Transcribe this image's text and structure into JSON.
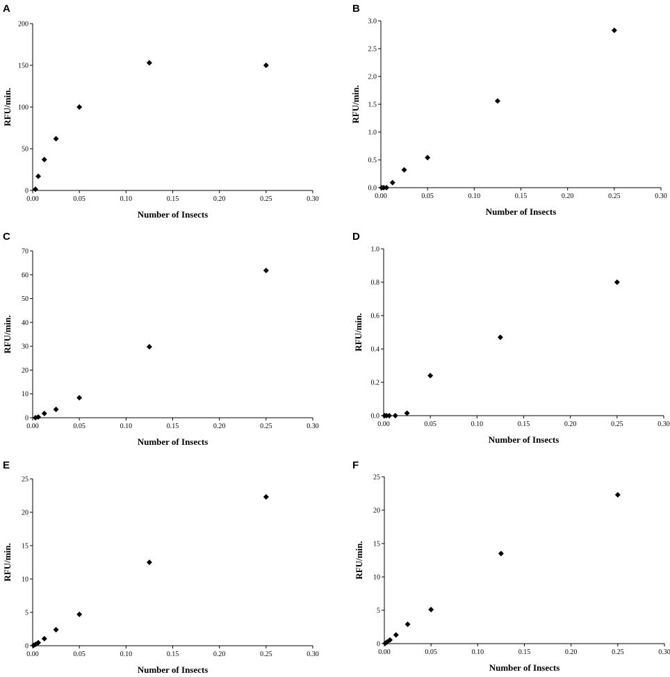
{
  "chart_data": [
    {
      "panel": "A",
      "type": "scatter",
      "xlabel": "Number of Insects",
      "ylabel": "RFU/min.",
      "xlim": [
        0,
        0.3
      ],
      "ylim": [
        0,
        200
      ],
      "xticks": [
        "0.00",
        "0.05",
        "0.10",
        "0.15",
        "0.20",
        "0.25",
        "0.30"
      ],
      "yticks": [
        "0",
        "50",
        "100",
        "150",
        "200"
      ],
      "x": [
        0.003,
        0.006,
        0.0125,
        0.025,
        0.05,
        0.125,
        0.25
      ],
      "y": [
        1.5,
        17,
        37,
        62,
        100,
        153,
        150
      ]
    },
    {
      "panel": "B",
      "type": "scatter",
      "xlabel": "Number of Insects",
      "ylabel": "RFU/min.",
      "xlim": [
        0,
        0.3
      ],
      "ylim": [
        0,
        3
      ],
      "xticks": [
        "0.00",
        "0.05",
        "0.10",
        "0.15",
        "0.20",
        "0.25",
        "0.30"
      ],
      "yticks": [
        "0.0",
        "0.5",
        "1.0",
        "1.5",
        "2.0",
        "2.5",
        "3.0"
      ],
      "x": [
        0.001,
        0.003,
        0.006,
        0.0125,
        0.025,
        0.05,
        0.125,
        0.25
      ],
      "y": [
        0,
        0,
        0,
        0.09,
        0.32,
        0.54,
        1.56,
        2.83
      ]
    },
    {
      "panel": "C",
      "type": "scatter",
      "xlabel": "Number of Insects",
      "ylabel": "RFU/min.",
      "xlim": [
        0,
        0.3
      ],
      "ylim": [
        0,
        70
      ],
      "xticks": [
        "0.00",
        "0.05",
        "0.10",
        "0.15",
        "0.20",
        "0.25",
        "0.30"
      ],
      "yticks": [
        "0",
        "10",
        "20",
        "30",
        "40",
        "50",
        "60",
        "70"
      ],
      "x": [
        0.003,
        0.006,
        0.0125,
        0.025,
        0.05,
        0.125,
        0.25
      ],
      "y": [
        0,
        0.3,
        1.8,
        3.5,
        8.4,
        29.8,
        61.8
      ]
    },
    {
      "panel": "D",
      "type": "scatter",
      "xlabel": "Number of Insects",
      "ylabel": "RFU/min.",
      "xlim": [
        0,
        0.3
      ],
      "ylim": [
        0,
        1
      ],
      "xticks": [
        "0.00",
        "0.05",
        "0.10",
        "0.15",
        "0.20",
        "0.25",
        "0.30"
      ],
      "yticks": [
        "0.0",
        "0.2",
        "0.4",
        "0.6",
        "0.8",
        "1.0"
      ],
      "x": [
        0.001,
        0.003,
        0.006,
        0.0125,
        0.025,
        0.05,
        0.125,
        0.25
      ],
      "y": [
        0,
        0,
        0,
        0,
        0.015,
        0.24,
        0.47,
        0.8
      ]
    },
    {
      "panel": "E",
      "type": "scatter",
      "xlabel": "Number of Insects",
      "ylabel": "RFU/min.",
      "xlim": [
        0,
        0.3
      ],
      "ylim": [
        0,
        25
      ],
      "xticks": [
        "0.00",
        "0.05",
        "0.10",
        "0.15",
        "0.20",
        "0.25",
        "0.30"
      ],
      "yticks": [
        "0",
        "5",
        "10",
        "15",
        "20",
        "25"
      ],
      "x": [
        0.001,
        0.003,
        0.006,
        0.0125,
        0.025,
        0.05,
        0.125,
        0.25
      ],
      "y": [
        0.05,
        0.2,
        0.45,
        1.05,
        2.4,
        4.7,
        12.5,
        22.3
      ]
    },
    {
      "panel": "F",
      "type": "scatter",
      "xlabel": "Number of Insects",
      "ylabel": "RFU/min.",
      "xlim": [
        0,
        0.3
      ],
      "ylim": [
        0,
        25
      ],
      "xticks": [
        "0.00",
        "0.05",
        "0.10",
        "0.15",
        "0.20",
        "0.25",
        "0.30"
      ],
      "yticks": [
        "0",
        "5",
        "10",
        "15",
        "20",
        "25"
      ],
      "x": [
        0.001,
        0.003,
        0.006,
        0.0125,
        0.025,
        0.05,
        0.125,
        0.25
      ],
      "y": [
        0.05,
        0.25,
        0.55,
        1.3,
        2.9,
        5.1,
        13.5,
        22.3
      ]
    }
  ]
}
